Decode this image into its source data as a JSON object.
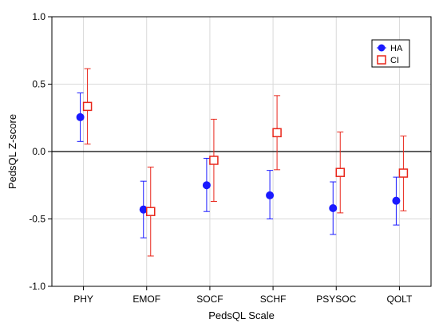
{
  "chart_data": {
    "type": "scatter",
    "subtype": "error-bar",
    "title": "",
    "xlabel": "PedsQL Scale",
    "ylabel": "PedsQL Z-score",
    "categories": [
      "PHY",
      "EMOF",
      "SOCF",
      "SCHF",
      "PSYSOC",
      "QOLT"
    ],
    "ylim": [
      -1.0,
      1.0
    ],
    "yticks": [
      "-1.0",
      "-0.5",
      "0.0",
      "0.5",
      "1.0"
    ],
    "grid": true,
    "reference_line": 0.0,
    "legend_position": "top-right",
    "series": [
      {
        "name": "HA",
        "marker": "filled-circle",
        "color": "#1a1aff",
        "values": [
          0.255,
          -0.43,
          -0.25,
          -0.325,
          -0.42,
          -0.365
        ],
        "lower": [
          0.075,
          -0.64,
          -0.445,
          -0.5,
          -0.615,
          -0.545
        ],
        "upper": [
          0.435,
          -0.22,
          -0.05,
          -0.14,
          -0.225,
          -0.19
        ]
      },
      {
        "name": "CI",
        "marker": "open-square",
        "color": "#e8261a",
        "values": [
          0.335,
          -0.445,
          -0.065,
          0.14,
          -0.155,
          -0.16
        ],
        "lower": [
          0.055,
          -0.775,
          -0.37,
          -0.135,
          -0.455,
          -0.44
        ],
        "upper": [
          0.615,
          -0.115,
          0.24,
          0.415,
          0.145,
          0.115
        ]
      }
    ]
  }
}
